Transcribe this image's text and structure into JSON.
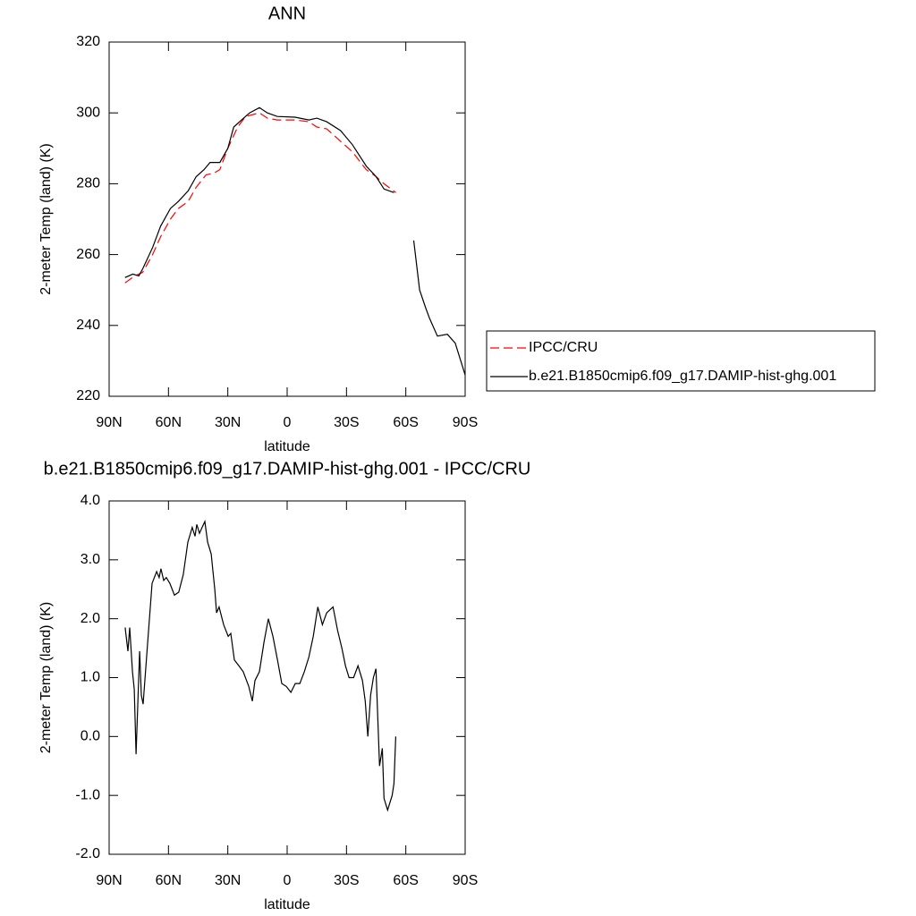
{
  "chart_data": [
    {
      "type": "line",
      "title": "ANN",
      "xlabel": "latitude",
      "ylabel": "2-meter Temp (land) (K)",
      "xlim": [
        90,
        -90
      ],
      "ylim": [
        220,
        320
      ],
      "xticks": [
        {
          "value": 90,
          "label": "90N"
        },
        {
          "value": 60,
          "label": "60N"
        },
        {
          "value": 30,
          "label": "30N"
        },
        0,
        {
          "value": -30,
          "label": "30S"
        },
        {
          "value": -60,
          "label": "60S"
        },
        {
          "value": -90,
          "label": "90S"
        }
      ],
      "yticks": [
        220,
        240,
        260,
        280,
        300,
        320
      ],
      "legend": "right",
      "series": [
        {
          "name": "IPCC/CRU",
          "color": "#ff0000",
          "linestyle": "dashed",
          "x": [
            82,
            77,
            73,
            68,
            64,
            59,
            55,
            50,
            46,
            41,
            37,
            34,
            30,
            25,
            21,
            14,
            10,
            5,
            -4,
            -11,
            -15,
            -20,
            -27,
            -33,
            -40,
            -45,
            -49,
            -55
          ],
          "values": [
            252,
            254,
            255,
            260,
            265,
            270,
            273,
            275,
            279,
            282.5,
            283,
            284,
            290,
            296,
            299,
            300,
            298.5,
            298,
            298,
            297.5,
            296,
            295.5,
            292,
            289,
            284,
            282,
            280,
            277.5
          ]
        },
        {
          "name": "b.e21.B1850cmip6.f09_g17.DAMIP-hist-ghg.001",
          "color": "#000000",
          "linestyle": "solid",
          "x": [
            82,
            78,
            75,
            73,
            68,
            64,
            59,
            55,
            50,
            46,
            42,
            39,
            34,
            30,
            27,
            23,
            19,
            14,
            10,
            5,
            -4,
            -11,
            -15,
            -20,
            -27,
            -33,
            -40,
            -45,
            -49,
            -54,
            -59,
            -64,
            -67,
            -70,
            -72,
            -76,
            -81,
            -85,
            -90
          ],
          "values": [
            253.5,
            254.5,
            254,
            256,
            262,
            268,
            273,
            275,
            278,
            282,
            284,
            286,
            286,
            290,
            296,
            298,
            300,
            301.5,
            300,
            299,
            298.8,
            298,
            298.5,
            297.5,
            295,
            291,
            285,
            282,
            278.5,
            277.5,
            null,
            264,
            250,
            245,
            242,
            237,
            237.5,
            235,
            226
          ]
        }
      ]
    },
    {
      "type": "line",
      "title": "b.e21.B1850cmip6.f09_g17.DAMIP-hist-ghg.001 - IPCC/CRU",
      "xlabel": "latitude",
      "ylabel": "2-meter Temp (land) (K)",
      "xlim": [
        90,
        -90
      ],
      "ylim": [
        -2,
        4
      ],
      "xticks": [
        {
          "value": 90,
          "label": "90N"
        },
        {
          "value": 60,
          "label": "60N"
        },
        {
          "value": 30,
          "label": "30N"
        },
        0,
        {
          "value": -30,
          "label": "30S"
        },
        {
          "value": -60,
          "label": "60S"
        },
        {
          "value": -90,
          "label": "90S"
        }
      ],
      "yticks": [
        {
          "value": -2,
          "label": "-2.0"
        },
        {
          "value": -1,
          "label": "-1.0"
        },
        {
          "value": 0,
          "label": "0.0"
        },
        {
          "value": 1,
          "label": "1.0"
        },
        {
          "value": 2,
          "label": "2.0"
        },
        {
          "value": 3,
          "label": "3.0"
        },
        {
          "value": 4,
          "label": "4.0"
        }
      ],
      "series": [
        {
          "color": "#000000",
          "linestyle": "solid",
          "x": [
            81.9,
            80.5,
            79.6,
            78.2,
            77.3,
            76.4,
            74.6,
            73.7,
            72.8,
            70.5,
            68.3,
            66.0,
            64.7,
            63.8,
            62.4,
            61.1,
            59.3,
            57.0,
            54.8,
            52.5,
            50.2,
            48.0,
            46.6,
            45.7,
            44.3,
            43.0,
            41.6,
            40.2,
            38.4,
            36.6,
            35.7,
            34.4,
            32.1,
            29.8,
            28.5,
            26.7,
            24.4,
            22.2,
            19.4,
            17.6,
            16.3,
            14.0,
            11.7,
            9.5,
            7.2,
            4.9,
            2.7,
            0.4,
            -1.9,
            -4.1,
            -6.4,
            -8.7,
            -11.0,
            -13.2,
            -15.5,
            -17.8,
            -20.0,
            -23.2,
            -25.5,
            -27.7,
            -29.5,
            -31.3,
            -33.6,
            -35.8,
            -38.1,
            -39.5,
            -40.8,
            -42.2,
            -43.6,
            -44.9,
            -46.7,
            -48.1,
            -49.0,
            -50.8,
            -53.1,
            -54.0,
            -54.9
          ],
          "values": [
            1.85,
            1.45,
            1.85,
            1.1,
            0.8,
            -0.3,
            1.45,
            0.7,
            0.55,
            1.6,
            2.6,
            2.8,
            2.7,
            2.85,
            2.65,
            2.7,
            2.6,
            2.4,
            2.45,
            2.75,
            3.3,
            3.55,
            3.4,
            3.6,
            3.45,
            3.55,
            3.65,
            3.3,
            3.1,
            2.5,
            2.1,
            2.2,
            1.9,
            1.7,
            1.75,
            1.3,
            1.2,
            1.1,
            0.85,
            0.6,
            0.95,
            1.1,
            1.6,
            2.0,
            1.7,
            1.3,
            0.9,
            0.85,
            0.75,
            0.9,
            0.9,
            1.1,
            1.35,
            1.7,
            2.2,
            1.9,
            2.1,
            2.2,
            1.8,
            1.5,
            1.2,
            1.0,
            1.0,
            1.2,
            0.95,
            0.6,
            0.0,
            0.7,
            1.0,
            1.15,
            -0.5,
            -0.2,
            -1.05,
            -1.25,
            -1.0,
            -0.8,
            0.0
          ]
        }
      ]
    }
  ]
}
